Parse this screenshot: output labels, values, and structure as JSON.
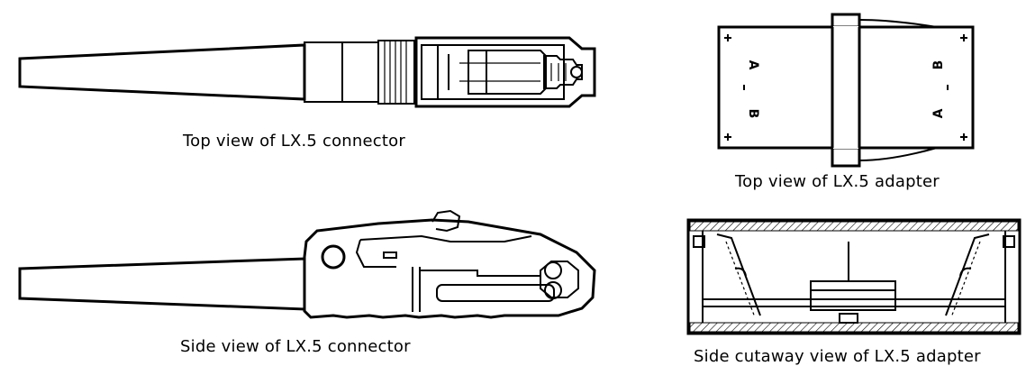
{
  "captions": {
    "top_connector": "Top view of LX.5 connector",
    "side_connector": "Side view of LX.5 connector",
    "top_adapter": "Top view of LX.5 adapter",
    "side_adapter": "Side cutaway view of LX.5 adapter"
  },
  "adapter_port_labels": {
    "left_top": "A",
    "left_bottom": "B",
    "right_top": "B",
    "right_bottom": "A"
  }
}
